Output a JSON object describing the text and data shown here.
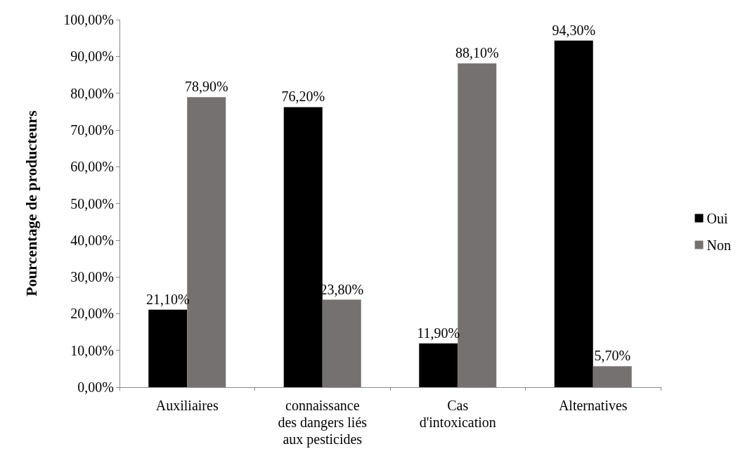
{
  "chart_data": {
    "type": "bar",
    "ylabel": "Pourcentage de producteurs",
    "categories": [
      "Auxiliaires",
      "connaissance\ndes dangers liés\naux pesticides",
      "Cas\nd'intoxication",
      "Alternatives"
    ],
    "series": [
      {
        "name": "Oui",
        "color": "#000000",
        "values": [
          21.1,
          76.2,
          11.9,
          94.3
        ],
        "value_labels": [
          "21,10%",
          "76,20%",
          "11,90%",
          "94,30%"
        ]
      },
      {
        "name": "Non",
        "color": "#767171",
        "values": [
          78.9,
          23.8,
          88.1,
          5.7
        ],
        "value_labels": [
          "78,90%",
          "23,80%",
          "88,10%",
          "5,70%"
        ]
      }
    ],
    "ylim": [
      0,
      100
    ],
    "yticks": [
      {
        "value": 0,
        "label": "0,00%"
      },
      {
        "value": 10,
        "label": "10,00%"
      },
      {
        "value": 20,
        "label": "20,00%"
      },
      {
        "value": 30,
        "label": "30,00%"
      },
      {
        "value": 40,
        "label": "40,00%"
      },
      {
        "value": 50,
        "label": "50,00%"
      },
      {
        "value": 60,
        "label": "60,00%"
      },
      {
        "value": 70,
        "label": "70,00%"
      },
      {
        "value": 80,
        "label": "80,00%"
      },
      {
        "value": 90,
        "label": "90,00%"
      },
      {
        "value": 100,
        "label": "100,00%"
      }
    ],
    "grid": false,
    "legend": "right"
  }
}
